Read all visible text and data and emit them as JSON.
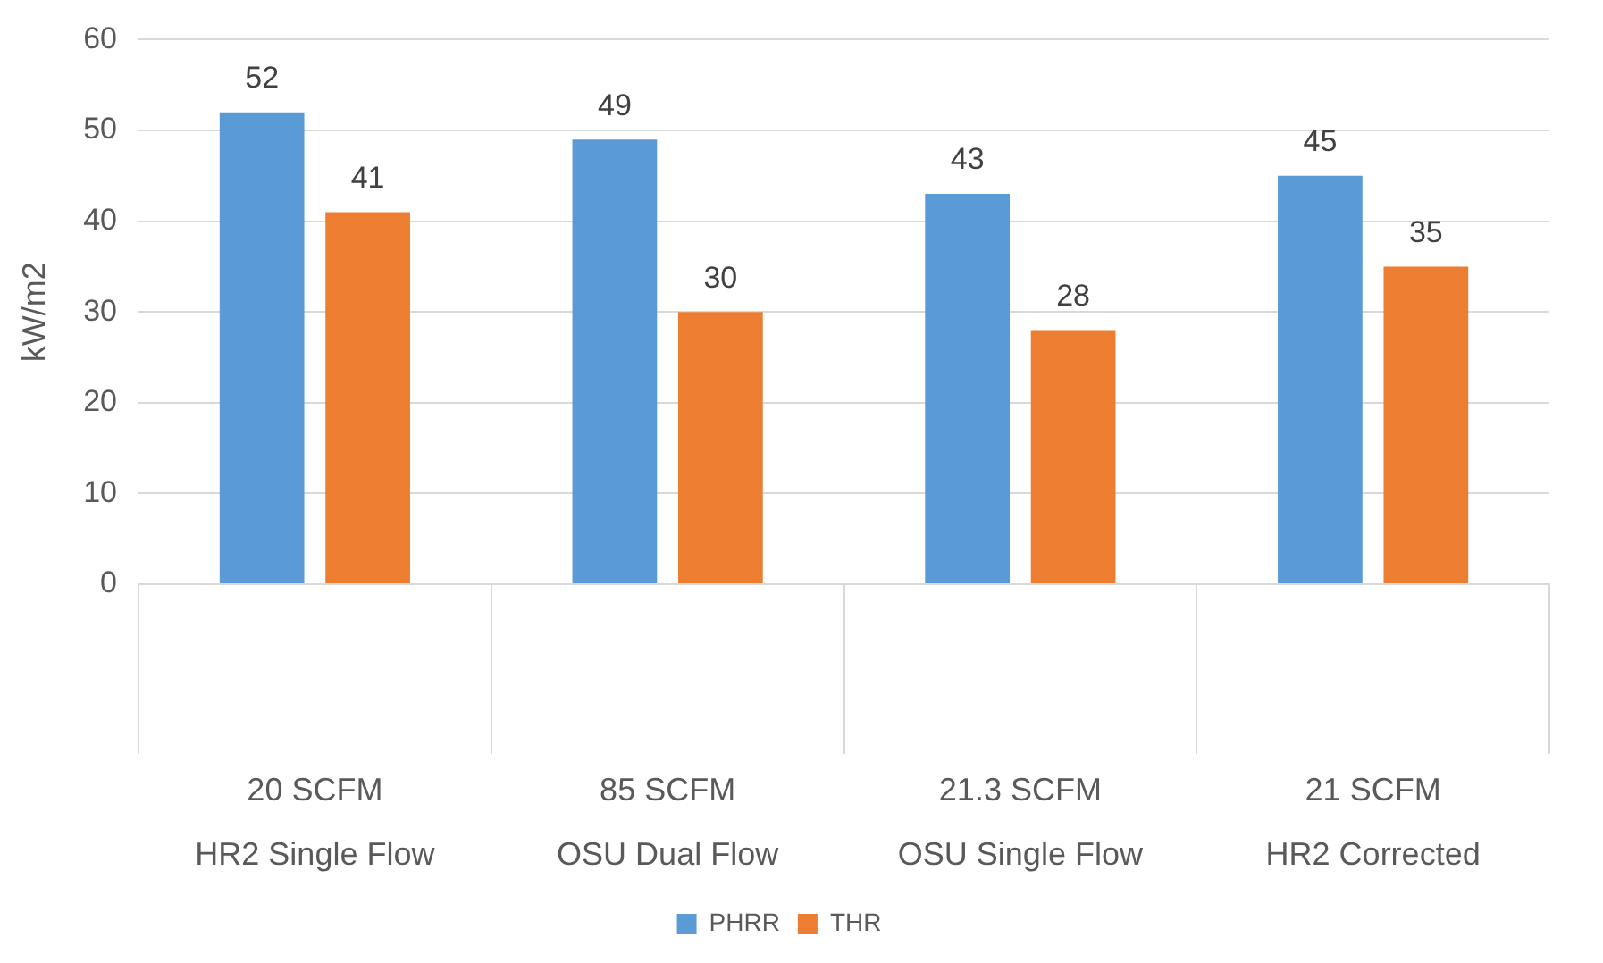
{
  "chart_data": {
    "type": "bar",
    "ylabel": "kW/m2",
    "categories": [
      "20 SCFM\nHR2 Single Flow",
      "85 SCFM\nOSU Dual Flow",
      "21.3 SCFM\nOSU Single Flow",
      "21 SCFM\nHR2 Corrected"
    ],
    "series": [
      {
        "name": "PHRR",
        "color": "#5b9bd5",
        "values": [
          52,
          49,
          43,
          45
        ]
      },
      {
        "name": "THR",
        "color": "#ed7d31",
        "values": [
          41,
          30,
          28,
          35
        ]
      }
    ],
    "ylim": [
      0,
      60
    ],
    "yticks": [
      0,
      10,
      20,
      30,
      40,
      50,
      60
    ],
    "grid": "y",
    "legend": "bottom",
    "data_labels": true
  }
}
